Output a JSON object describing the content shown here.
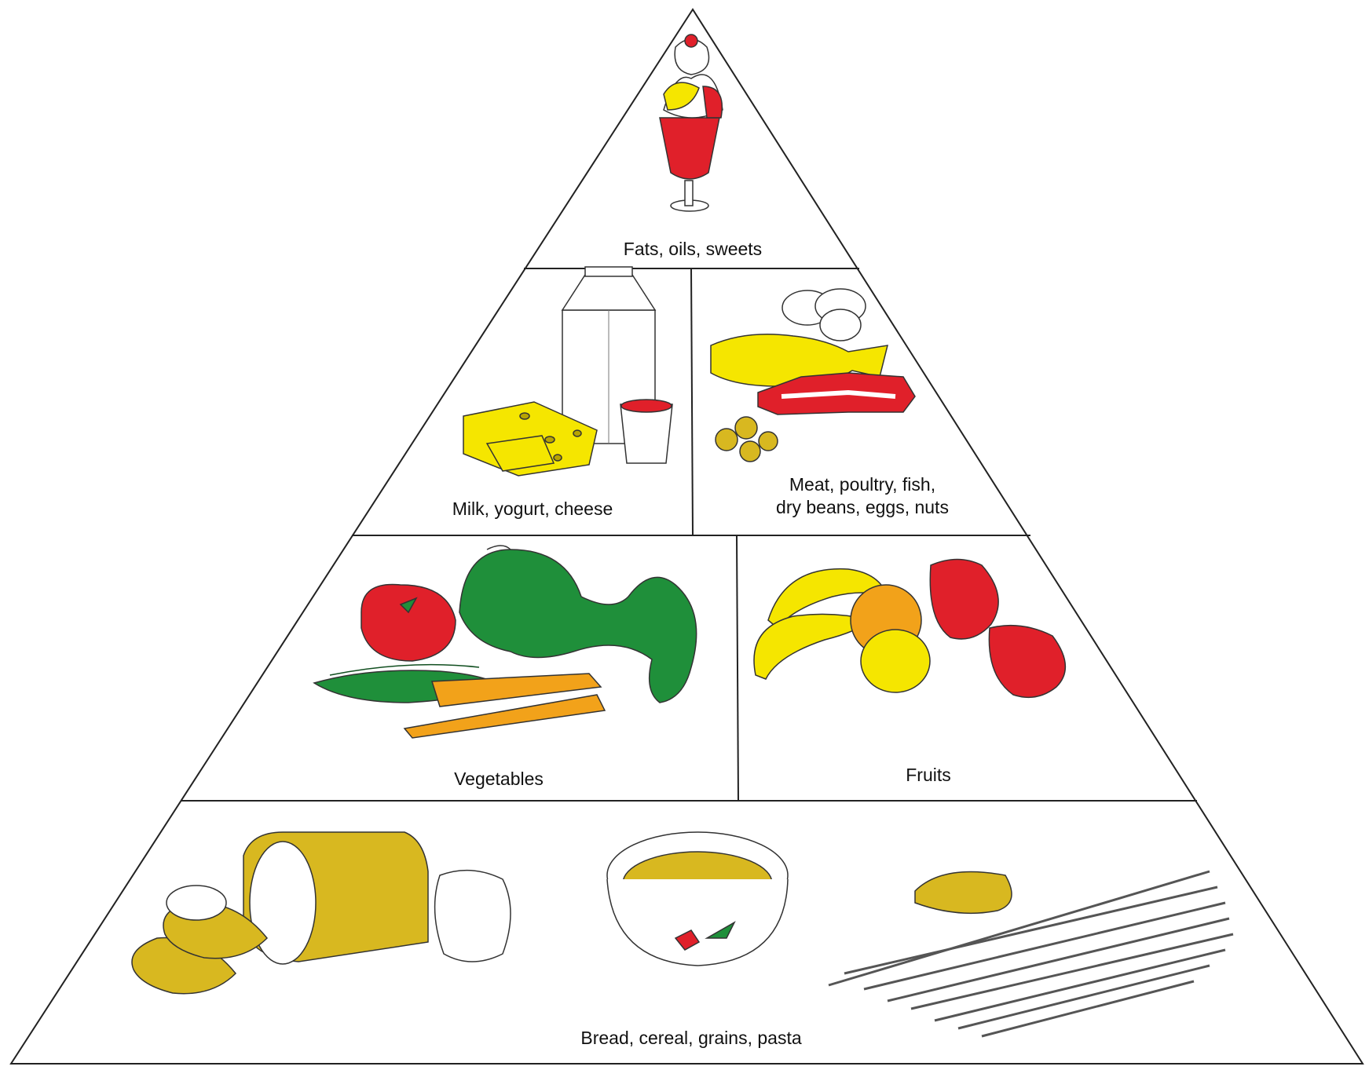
{
  "pyramid": {
    "tier1": {
      "label": "Fats, oils, sweets",
      "image_icon": "ice-cream-sundae-icon"
    },
    "tier2": {
      "left": {
        "label": "Milk, yogurt, cheese",
        "image_icon": "milk-carton-cheese-icon"
      },
      "right": {
        "label_line1": "Meat, poultry, fish,",
        "label_line2": "dry beans, eggs, nuts",
        "image_icon": "fish-steak-eggs-nuts-icon"
      }
    },
    "tier3": {
      "left": {
        "label": "Vegetables",
        "image_icon": "tomato-broccoli-carrots-icon"
      },
      "right": {
        "label": "Fruits",
        "image_icon": "bananas-orange-apples-icon"
      }
    },
    "tier4": {
      "label": "Bread, cereal, grains, pasta",
      "image_icon": "bread-cereal-pasta-icon"
    }
  },
  "colors": {
    "outline": "#222222",
    "red": "#e0202a",
    "yellow": "#f5e600",
    "gold": "#d8b820",
    "green": "#1f8f3a",
    "orange": "#f2a21a"
  }
}
